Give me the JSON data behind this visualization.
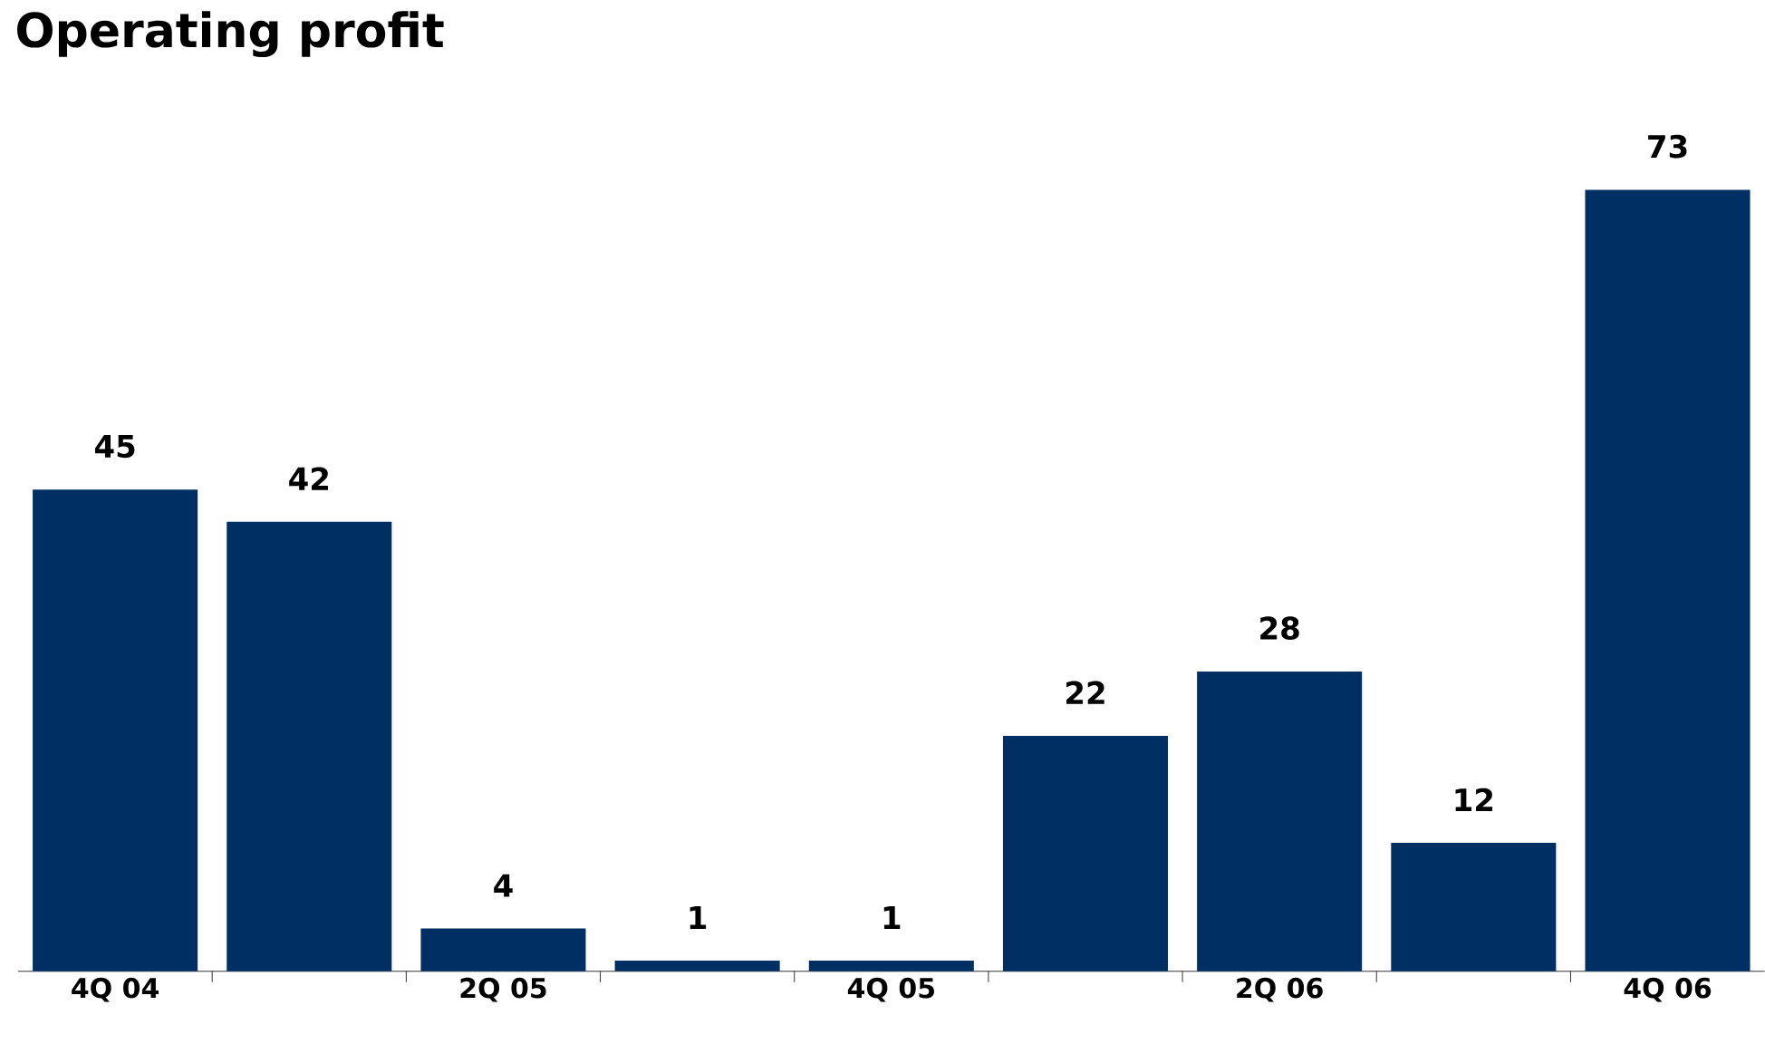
{
  "chart_data": {
    "type": "bar",
    "title": "Operating profit",
    "categories": [
      "4Q 04",
      null,
      "2Q 05",
      null,
      "4Q 05",
      null,
      "2Q 06",
      null,
      "4Q 06"
    ],
    "values": [
      45,
      42,
      4,
      1,
      1,
      22,
      28,
      12,
      73
    ],
    "color": "#003063",
    "data_labels": true,
    "tick_labels": "x"
  }
}
